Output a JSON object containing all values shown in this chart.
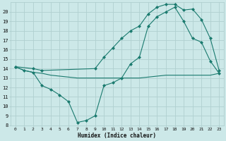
{
  "xlabel": "Humidex (Indice chaleur)",
  "background_color": "#cce8e8",
  "line_color": "#1a7a6e",
  "grid_color": "#b0d0d0",
  "xlim": [
    -0.5,
    23.5
  ],
  "ylim": [
    8,
    21
  ],
  "yticks": [
    8,
    9,
    10,
    11,
    12,
    13,
    14,
    15,
    16,
    17,
    18,
    19,
    20
  ],
  "xtick_labels": [
    "0",
    "1",
    "2",
    "3",
    "4",
    "5",
    "6",
    "7",
    "8",
    "9",
    "10",
    "11",
    "12",
    "13",
    "14",
    "15",
    "16",
    "17",
    "18",
    "19",
    "20",
    "21",
    "22",
    "23"
  ],
  "xtick_pos": [
    0,
    1,
    2,
    3,
    4,
    5,
    6,
    7,
    8,
    9,
    10,
    11,
    12,
    13,
    14,
    15,
    16,
    17,
    18,
    19,
    20,
    21,
    22,
    23
  ],
  "line1_x": [
    0,
    1,
    2,
    3,
    4,
    5,
    6,
    7,
    8,
    9,
    10,
    11,
    12,
    13,
    14,
    15,
    16,
    17,
    18,
    19,
    20,
    21,
    22,
    23
  ],
  "line1_y": [
    14.2,
    13.8,
    13.6,
    13.5,
    13.3,
    13.2,
    13.1,
    13.0,
    13.0,
    13.0,
    13.0,
    13.0,
    13.0,
    13.0,
    13.0,
    13.1,
    13.2,
    13.3,
    13.3,
    13.3,
    13.3,
    13.3,
    13.3,
    13.5
  ],
  "line2_x": [
    0,
    1,
    2,
    3,
    4,
    5,
    6,
    7,
    8,
    9,
    10,
    11,
    12,
    13,
    14,
    15,
    16,
    17,
    18,
    19,
    20,
    21,
    22,
    23
  ],
  "line2_y": [
    14.2,
    13.8,
    13.6,
    12.2,
    11.8,
    11.2,
    10.5,
    8.3,
    8.5,
    9.0,
    12.2,
    12.5,
    13.0,
    14.5,
    15.2,
    18.5,
    19.5,
    20.0,
    20.5,
    19.0,
    17.2,
    16.8,
    14.8,
    13.5
  ],
  "line3_x": [
    0,
    2,
    3,
    9,
    10,
    11,
    12,
    13,
    14,
    15,
    16,
    17,
    18,
    19,
    20,
    21,
    22,
    23
  ],
  "line3_y": [
    14.2,
    14.0,
    13.8,
    14.0,
    15.2,
    16.2,
    17.2,
    18.0,
    18.5,
    19.8,
    20.5,
    20.8,
    20.8,
    20.2,
    20.3,
    19.2,
    17.2,
    13.8
  ]
}
